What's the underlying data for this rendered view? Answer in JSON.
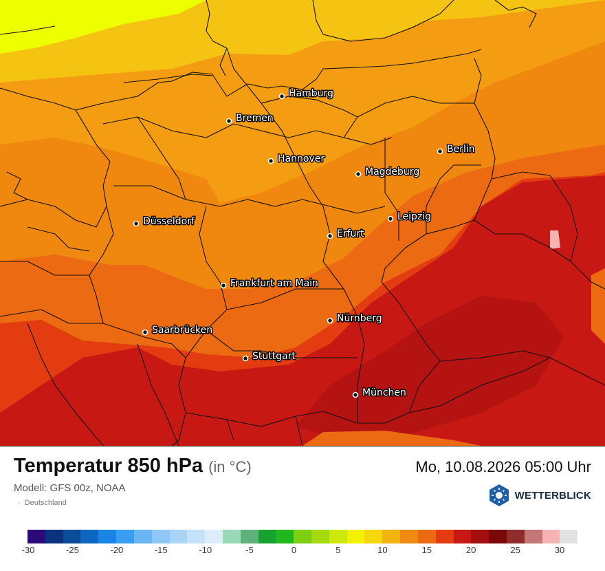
{
  "map": {
    "cities": [
      {
        "name": "Hamburg"
      },
      {
        "name": "Bremen"
      },
      {
        "name": "Hannover"
      },
      {
        "name": "Berlin"
      },
      {
        "name": "Magdeburg"
      },
      {
        "name": "Düsseldorf"
      },
      {
        "name": "Leipzig"
      },
      {
        "name": "Erfurt"
      },
      {
        "name": "Frankfurt am Main"
      },
      {
        "name": "Nürnberg"
      },
      {
        "name": "Saarbrücken"
      },
      {
        "name": "Stuttgart"
      },
      {
        "name": "München"
      }
    ]
  },
  "footer": {
    "title": "Temperatur 850 hPa",
    "unit": "(in °C)",
    "datetime": "Mo, 10.08.2026 05:00 Uhr",
    "model": "Modell: GFS 00z, NOAA",
    "region": "Deutschland",
    "brand": "WETTERBLICK"
  },
  "legend": {
    "colors": [
      "#2d0a7a",
      "#0d327d",
      "#0a4c99",
      "#0f66c2",
      "#1a84e6",
      "#3a9ef0",
      "#6ab6f5",
      "#8ec6f7",
      "#a8d4f8",
      "#c6e2fa",
      "#dcedfb",
      "#99d9b8",
      "#5fb07c",
      "#17a12e",
      "#20b81a",
      "#7dcf12",
      "#a6d90e",
      "#cfe80b",
      "#f2f200",
      "#f5d70a",
      "#f2b40f",
      "#f08a12",
      "#ec6a12",
      "#e23c10",
      "#c81814",
      "#a50e10",
      "#7a0808",
      "#8f2c2c",
      "#c47777",
      "#f7b3b3",
      "#e2e2e2"
    ],
    "ticks": [
      "-30",
      "-25",
      "-20",
      "-15",
      "-10",
      "-5",
      "0",
      "5",
      "10",
      "15",
      "20",
      "25",
      "30"
    ]
  }
}
